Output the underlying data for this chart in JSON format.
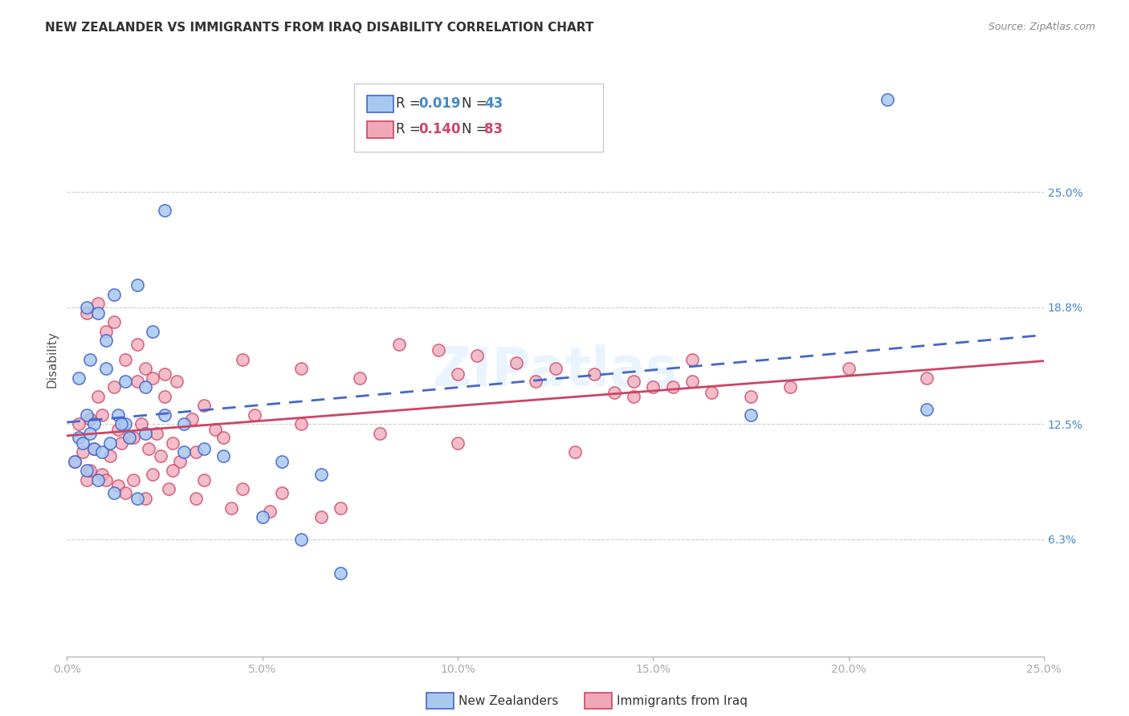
{
  "title": "NEW ZEALANDER VS IMMIGRANTS FROM IRAQ DISABILITY CORRELATION CHART",
  "source": "Source: ZipAtlas.com",
  "ylabel": "Disability",
  "right_yticks": [
    "25.0%",
    "18.8%",
    "12.5%",
    "6.3%"
  ],
  "right_ytick_vals": [
    0.25,
    0.188,
    0.125,
    0.063
  ],
  "legend_blue_r": "0.019",
  "legend_blue_n": "43",
  "legend_pink_r": "0.140",
  "legend_pink_n": "83",
  "watermark": "ZIPatlas",
  "blue_color": "#a8c8f0",
  "pink_color": "#f0a8b8",
  "blue_line_color": "#4466cc",
  "pink_line_color": "#cc4466",
  "blue_x": [
    0.005,
    0.007,
    0.012,
    0.018,
    0.022,
    0.005,
    0.008,
    0.01,
    0.013,
    0.015,
    0.003,
    0.004,
    0.006,
    0.007,
    0.009,
    0.011,
    0.014,
    0.016,
    0.02,
    0.025,
    0.002,
    0.005,
    0.008,
    0.012,
    0.018,
    0.03,
    0.035,
    0.05,
    0.06,
    0.07,
    0.003,
    0.006,
    0.01,
    0.015,
    0.02,
    0.025,
    0.03,
    0.04,
    0.055,
    0.065,
    0.175,
    0.22,
    0.21
  ],
  "blue_y": [
    0.13,
    0.125,
    0.195,
    0.2,
    0.175,
    0.188,
    0.185,
    0.17,
    0.13,
    0.125,
    0.118,
    0.115,
    0.12,
    0.112,
    0.11,
    0.115,
    0.125,
    0.118,
    0.12,
    0.24,
    0.105,
    0.1,
    0.095,
    0.088,
    0.085,
    0.125,
    0.112,
    0.075,
    0.063,
    0.045,
    0.15,
    0.16,
    0.155,
    0.148,
    0.145,
    0.13,
    0.11,
    0.108,
    0.105,
    0.098,
    0.13,
    0.133,
    0.3
  ],
  "pink_x": [
    0.005,
    0.008,
    0.01,
    0.012,
    0.015,
    0.018,
    0.02,
    0.022,
    0.025,
    0.028,
    0.003,
    0.006,
    0.009,
    0.013,
    0.016,
    0.019,
    0.023,
    0.027,
    0.032,
    0.038,
    0.004,
    0.007,
    0.011,
    0.014,
    0.017,
    0.021,
    0.024,
    0.029,
    0.033,
    0.04,
    0.005,
    0.009,
    0.013,
    0.017,
    0.022,
    0.027,
    0.035,
    0.045,
    0.055,
    0.07,
    0.002,
    0.006,
    0.01,
    0.015,
    0.02,
    0.026,
    0.033,
    0.042,
    0.052,
    0.065,
    0.008,
    0.012,
    0.018,
    0.025,
    0.035,
    0.048,
    0.06,
    0.08,
    0.1,
    0.13,
    0.045,
    0.06,
    0.075,
    0.1,
    0.12,
    0.145,
    0.185,
    0.2,
    0.22,
    0.16,
    0.085,
    0.095,
    0.105,
    0.115,
    0.125,
    0.135,
    0.145,
    0.155,
    0.165,
    0.175,
    0.14,
    0.15,
    0.16
  ],
  "pink_y": [
    0.185,
    0.19,
    0.175,
    0.18,
    0.16,
    0.168,
    0.155,
    0.15,
    0.152,
    0.148,
    0.125,
    0.128,
    0.13,
    0.122,
    0.118,
    0.125,
    0.12,
    0.115,
    0.128,
    0.122,
    0.11,
    0.112,
    0.108,
    0.115,
    0.118,
    0.112,
    0.108,
    0.105,
    0.11,
    0.118,
    0.095,
    0.098,
    0.092,
    0.095,
    0.098,
    0.1,
    0.095,
    0.09,
    0.088,
    0.08,
    0.105,
    0.1,
    0.095,
    0.088,
    0.085,
    0.09,
    0.085,
    0.08,
    0.078,
    0.075,
    0.14,
    0.145,
    0.148,
    0.14,
    0.135,
    0.13,
    0.125,
    0.12,
    0.115,
    0.11,
    0.16,
    0.155,
    0.15,
    0.152,
    0.148,
    0.14,
    0.145,
    0.155,
    0.15,
    0.16,
    0.168,
    0.165,
    0.162,
    0.158,
    0.155,
    0.152,
    0.148,
    0.145,
    0.142,
    0.14,
    0.142,
    0.145,
    0.148
  ]
}
